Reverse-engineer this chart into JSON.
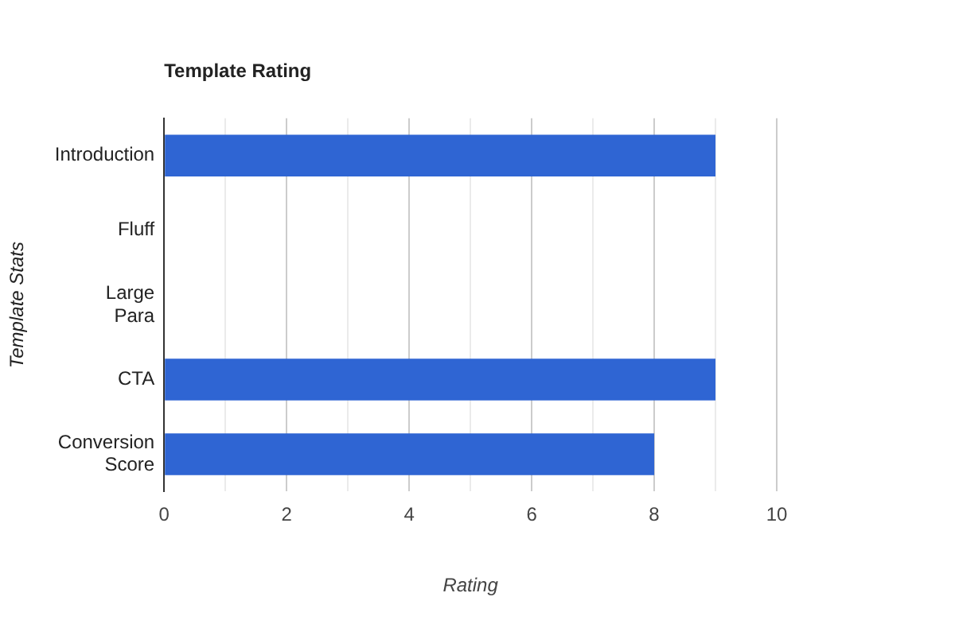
{
  "chart_data": {
    "type": "bar",
    "orientation": "horizontal",
    "title": "Template Rating",
    "xlabel": "Rating",
    "ylabel": "Template Stats",
    "categories": [
      "Introduction",
      "Fluff",
      "Large Para",
      "CTA",
      "Conversion Score"
    ],
    "values": [
      9,
      0,
      0,
      9,
      8
    ],
    "color": "#2f65d3",
    "xlim": [
      0,
      10
    ],
    "xticks": [
      0,
      {
        "value": 1,
        "label": null
      },
      2,
      {
        "value": 3,
        "label": null
      },
      4,
      {
        "value": 5,
        "label": null
      },
      6,
      {
        "value": 7,
        "label": null
      },
      8,
      {
        "value": 9,
        "label": null
      },
      10
    ],
    "grid": "x",
    "legend": false
  }
}
